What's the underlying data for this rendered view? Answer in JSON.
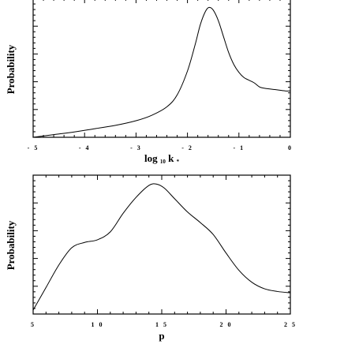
{
  "chart_data": [
    {
      "type": "line",
      "xlabel_main": "log",
      "xlabel_sub": "10",
      "xlabel_var": "k",
      "xlabel_star": "*",
      "ylabel": "Probability",
      "xlim": [
        -5,
        0
      ],
      "x_ticks": [
        -5,
        -4,
        -3,
        -2,
        -1,
        0
      ],
      "x_tick_labels": [
        "- 5",
        "- 4",
        "- 3",
        "- 2",
        "- 1",
        "0"
      ],
      "y_ticks": [
        0.2,
        0.4,
        0.6,
        0.8
      ],
      "ylim": [
        0,
        1
      ],
      "series": [
        {
          "x": [
            -5.0,
            -4.6,
            -4.2,
            -3.8,
            -3.4,
            -3.0,
            -2.7,
            -2.4,
            -2.2,
            -2.0,
            -1.85,
            -1.75,
            -1.65,
            -1.58,
            -1.5,
            -1.4,
            -1.3,
            -1.2,
            -1.1,
            -1.0,
            -0.9,
            -0.8,
            -0.7,
            -0.6,
            -0.5,
            -0.3,
            -0.1,
            0.0
          ],
          "y": [
            0.0,
            0.02,
            0.04,
            0.065,
            0.09,
            0.125,
            0.165,
            0.23,
            0.32,
            0.5,
            0.7,
            0.85,
            0.95,
            0.98,
            0.96,
            0.88,
            0.76,
            0.64,
            0.55,
            0.49,
            0.45,
            0.43,
            0.41,
            0.38,
            0.37,
            0.36,
            0.35,
            0.35
          ]
        }
      ]
    },
    {
      "type": "line",
      "xlabel": "p",
      "ylabel": "Probability",
      "xlim": [
        5,
        25
      ],
      "x_ticks": [
        5,
        10,
        15,
        20,
        25
      ],
      "x_tick_labels": [
        "5",
        "1 0",
        "1 5",
        "2 0",
        "2 5"
      ],
      "ylim": [
        0,
        1
      ],
      "series": [
        {
          "x": [
            5,
            6,
            7,
            8,
            9,
            10,
            11,
            12,
            13,
            14,
            14.6,
            15.2,
            16,
            17,
            18,
            19,
            20,
            21,
            22,
            23,
            24,
            25
          ],
          "y": [
            0.03,
            0.2,
            0.37,
            0.5,
            0.54,
            0.56,
            0.62,
            0.76,
            0.88,
            0.97,
            0.98,
            0.95,
            0.87,
            0.77,
            0.69,
            0.6,
            0.46,
            0.33,
            0.24,
            0.19,
            0.17,
            0.16
          ]
        }
      ]
    }
  ]
}
